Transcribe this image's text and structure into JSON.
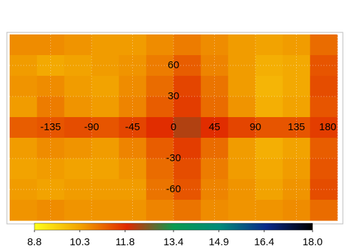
{
  "chart_data": {
    "type": "heatmap",
    "x": [
      -165,
      -135,
      -105,
      -75,
      -45,
      -15,
      15,
      45,
      75,
      105,
      135,
      165
    ],
    "y": [
      80,
      60,
      40,
      20,
      0,
      -20,
      -40,
      -60,
      -80
    ],
    "z": [
      [
        10.6,
        10.6,
        10.5,
        10.4,
        10.4,
        10.6,
        10.8,
        10.6,
        10.4,
        10.3,
        10.4,
        11.0
      ],
      [
        10.4,
        10.2,
        10.3,
        10.4,
        10.5,
        10.8,
        11.2,
        10.7,
        10.4,
        10.1,
        10.2,
        11.3
      ],
      [
        10.5,
        10.6,
        10.4,
        10.3,
        10.6,
        11.0,
        11.5,
        10.9,
        10.4,
        10.0,
        10.2,
        11.4
      ],
      [
        10.4,
        10.8,
        10.5,
        10.4,
        10.7,
        11.2,
        11.6,
        11.0,
        10.5,
        10.1,
        10.3,
        11.3
      ],
      [
        11.2,
        11.3,
        11.4,
        11.3,
        11.5,
        11.8,
        12.2,
        11.8,
        11.5,
        11.3,
        11.3,
        11.6
      ],
      [
        10.4,
        10.6,
        10.5,
        10.4,
        10.7,
        11.2,
        11.6,
        11.0,
        10.4,
        10.1,
        10.3,
        11.2
      ],
      [
        10.3,
        10.4,
        10.3,
        10.3,
        10.5,
        11.0,
        11.4,
        10.8,
        10.4,
        10.2,
        10.4,
        11.3
      ],
      [
        10.4,
        10.3,
        10.4,
        10.4,
        10.4,
        10.9,
        11.3,
        10.7,
        10.5,
        10.3,
        10.5,
        11.4
      ],
      [
        10.5,
        10.6,
        10.5,
        10.5,
        10.5,
        10.7,
        10.9,
        10.6,
        10.5,
        10.5,
        10.6,
        11.0
      ]
    ],
    "xlim": [
      -180,
      180
    ],
    "ylim": [
      -90,
      90
    ],
    "xticks": [
      -135,
      -90,
      -45,
      0,
      45,
      90,
      135,
      180
    ],
    "yticks": [
      60,
      30,
      -30,
      -60
    ],
    "grid": true,
    "colormap": [
      "#ffff1a",
      "#f2a100",
      "#e02800",
      "#0a9a50",
      "#008a7a",
      "#0a2a8a",
      "#000000"
    ],
    "colorbar": {
      "lim": [
        8.8,
        18.0
      ],
      "ticks": [
        8.8,
        10.3,
        11.8,
        13.4,
        14.9,
        16.4,
        {
          "value": 18,
          "label": "18.0"
        }
      ]
    }
  }
}
